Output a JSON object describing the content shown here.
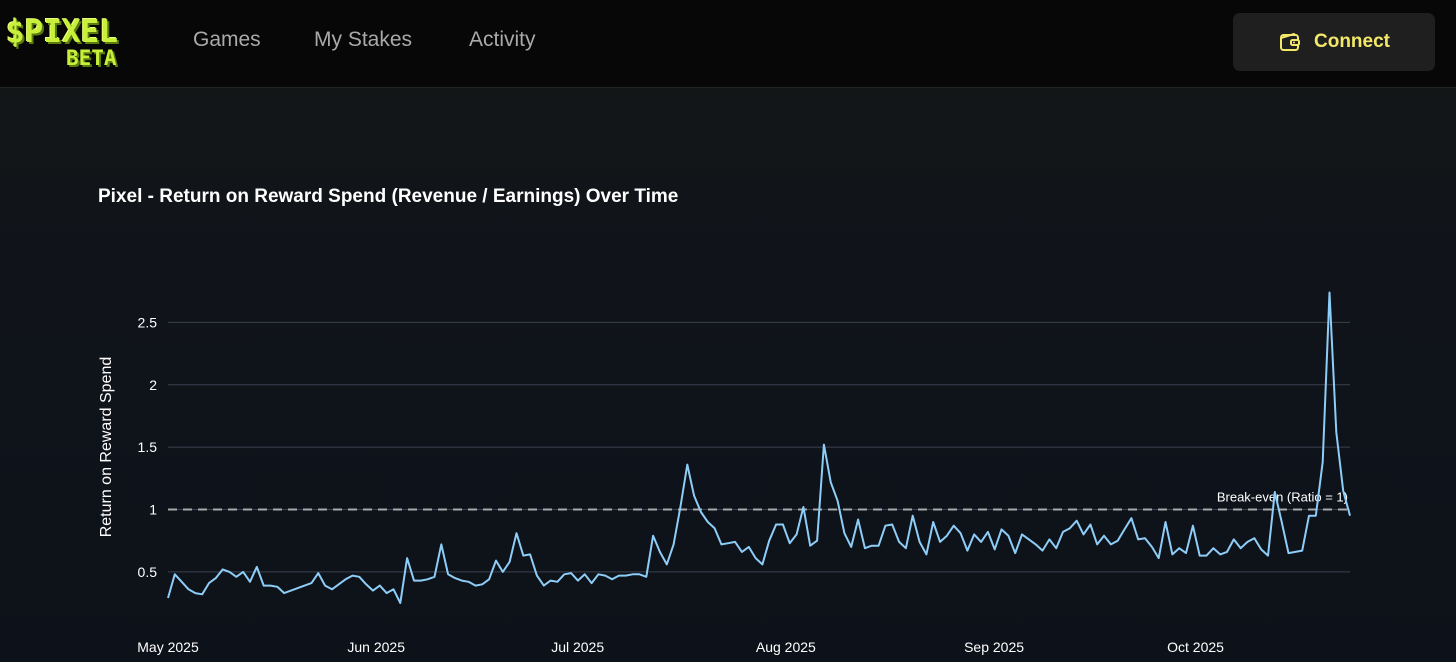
{
  "header": {
    "logo_top": "$PIXEL",
    "logo_bottom": "BETA",
    "nav": [
      {
        "label": "Games"
      },
      {
        "label": "My Stakes"
      },
      {
        "label": "Activity"
      }
    ],
    "connect_label": "Connect",
    "connect_icon": "wallet-icon",
    "accent_color": "#f3e86a"
  },
  "chart_data": {
    "type": "line",
    "title": "Pixel - Return on Reward Spend (Revenue / Earnings) Over Time",
    "xlabel": "",
    "ylabel": "Return on Reward Spend",
    "x_ticks": [
      "May 2025",
      "Jun 2025",
      "Jul 2025",
      "Aug 2025",
      "Sep 2025",
      "Oct 2025"
    ],
    "y_ticks": [
      "0.5",
      "1",
      "1.5",
      "2",
      "2.5"
    ],
    "xlim": [
      "2025-05-01",
      "2025-10-24"
    ],
    "ylim": [
      0.13,
      2.84
    ],
    "grid": "horizontal",
    "line_color": "#8ecdf7",
    "reference_line": {
      "y": 1,
      "label": "Break-even (Ratio = 1)",
      "style": "dashed",
      "color": "#a8a8a8"
    },
    "series": [
      {
        "name": "",
        "values": [
          0.29,
          0.48,
          0.42,
          0.36,
          0.33,
          0.32,
          0.41,
          0.45,
          0.52,
          0.5,
          0.46,
          0.5,
          0.42,
          0.54,
          0.39,
          0.39,
          0.38,
          0.33,
          0.35,
          0.37,
          0.39,
          0.41,
          0.49,
          0.39,
          0.36,
          0.4,
          0.44,
          0.47,
          0.46,
          0.4,
          0.35,
          0.39,
          0.33,
          0.36,
          0.25,
          0.61,
          0.43,
          0.43,
          0.44,
          0.46,
          0.72,
          0.48,
          0.45,
          0.43,
          0.42,
          0.39,
          0.4,
          0.44,
          0.59,
          0.5,
          0.58,
          0.81,
          0.63,
          0.64,
          0.47,
          0.39,
          0.43,
          0.42,
          0.48,
          0.49,
          0.43,
          0.48,
          0.41,
          0.48,
          0.47,
          0.44,
          0.47,
          0.47,
          0.48,
          0.48,
          0.46,
          0.79,
          0.66,
          0.56,
          0.72,
          1.02,
          1.36,
          1.11,
          0.98,
          0.9,
          0.85,
          0.72,
          0.73,
          0.74,
          0.66,
          0.7,
          0.61,
          0.56,
          0.75,
          0.88,
          0.88,
          0.73,
          0.8,
          1.02,
          0.71,
          0.75,
          1.52,
          1.22,
          1.07,
          0.81,
          0.7,
          0.92,
          0.69,
          0.71,
          0.71,
          0.87,
          0.88,
          0.74,
          0.69,
          0.95,
          0.74,
          0.64,
          0.9,
          0.74,
          0.79,
          0.87,
          0.81,
          0.67,
          0.8,
          0.74,
          0.82,
          0.68,
          0.84,
          0.79,
          0.65,
          0.8,
          0.76,
          0.72,
          0.67,
          0.76,
          0.69,
          0.82,
          0.85,
          0.91,
          0.8,
          0.88,
          0.72,
          0.79,
          0.72,
          0.75,
          0.84,
          0.93,
          0.76,
          0.77,
          0.7,
          0.61,
          0.9,
          0.64,
          0.69,
          0.65,
          0.87,
          0.63,
          0.63,
          0.69,
          0.64,
          0.66,
          0.76,
          0.69,
          0.74,
          0.77,
          0.68,
          0.63,
          1.14,
          0.9,
          0.65,
          0.66,
          0.67,
          0.95,
          0.95,
          1.38,
          2.74,
          1.62,
          1.15,
          0.95
        ]
      }
    ]
  }
}
